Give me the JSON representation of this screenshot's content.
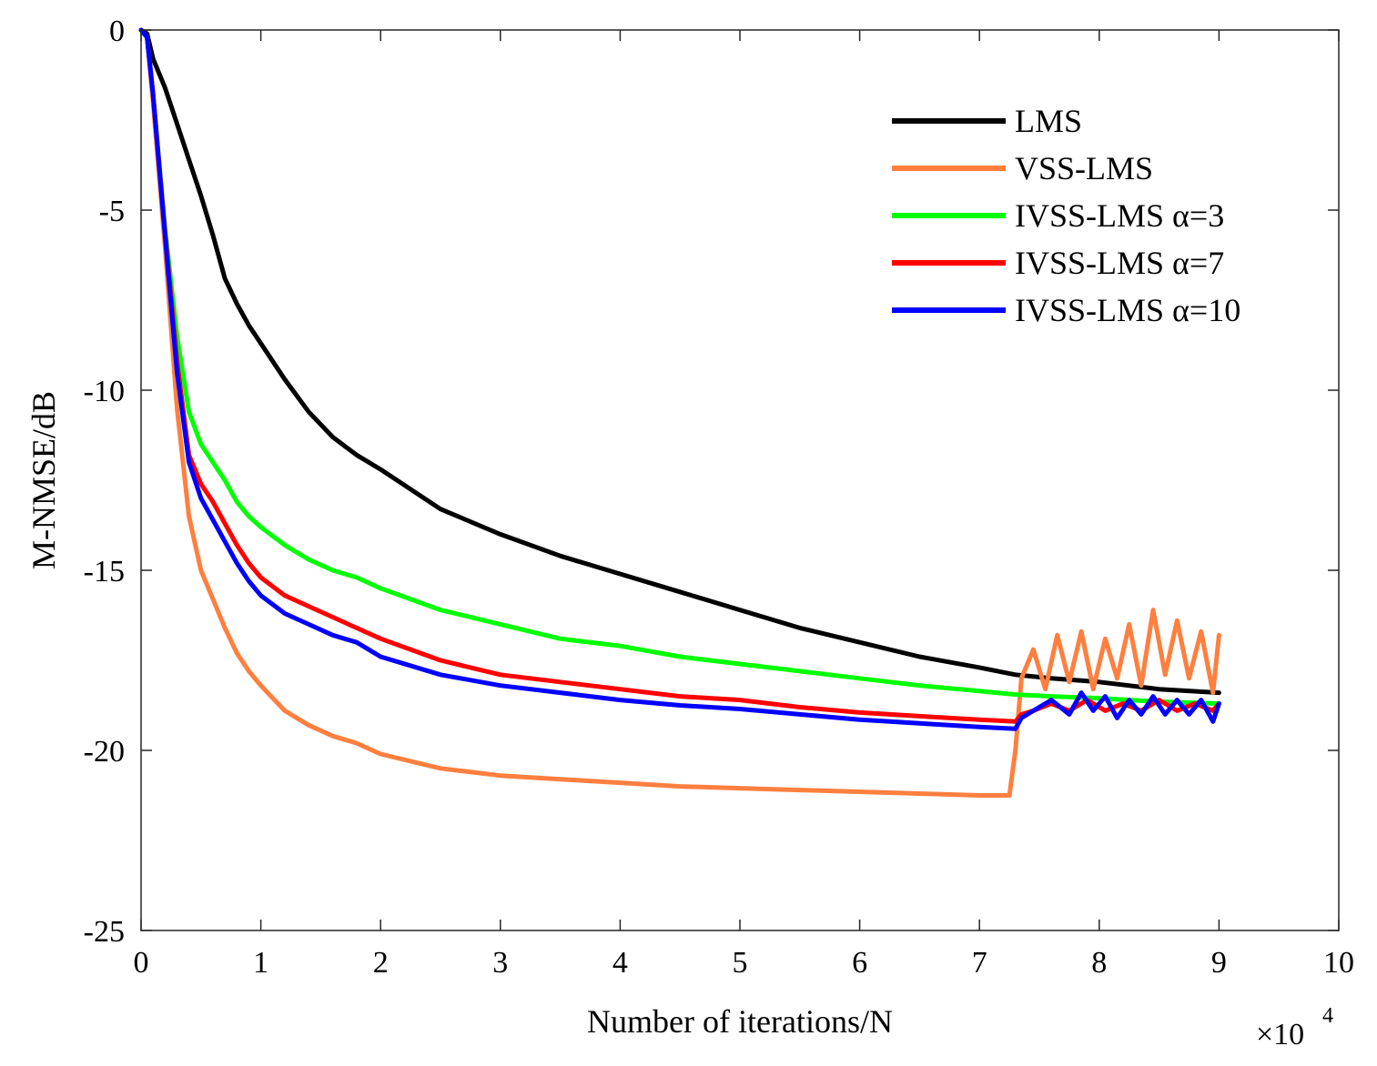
{
  "chart_data": {
    "type": "line",
    "title": "",
    "xlabel": "Number of iterations/N",
    "ylabel": "M-NMSE/dB",
    "x_multiplier": "×10",
    "x_multiplier_exp": "4",
    "xlim": [
      0,
      10
    ],
    "ylim": [
      -25,
      0
    ],
    "xticks": [
      0,
      1,
      2,
      3,
      4,
      5,
      6,
      7,
      8,
      9,
      10
    ],
    "xtick_labels": [
      "0",
      "1",
      "2",
      "3",
      "4",
      "5",
      "6",
      "7",
      "8",
      "9",
      "10"
    ],
    "yticks": [
      0,
      -5,
      -10,
      -15,
      -20,
      -25
    ],
    "ytick_labels": [
      "0",
      "-5",
      "-10",
      "-15",
      "-20",
      "-25"
    ],
    "grid": false,
    "legend_position": "top-right",
    "series": [
      {
        "name": "LMS",
        "color": "#000000",
        "x": [
          0,
          0.05,
          0.1,
          0.2,
          0.3,
          0.4,
          0.5,
          0.6,
          0.7,
          0.8,
          0.9,
          1.0,
          1.2,
          1.4,
          1.6,
          1.8,
          2.0,
          2.5,
          3.0,
          3.5,
          4.0,
          4.5,
          5.0,
          5.5,
          6.0,
          6.5,
          7.0,
          7.3,
          7.6,
          8.0,
          8.5,
          9.0
        ],
        "values": [
          0,
          -0.1,
          -0.8,
          -1.6,
          -2.6,
          -3.6,
          -4.6,
          -5.7,
          -6.9,
          -7.6,
          -8.2,
          -8.7,
          -9.7,
          -10.6,
          -11.3,
          -11.8,
          -12.2,
          -13.3,
          -14.0,
          -14.6,
          -15.1,
          -15.6,
          -16.1,
          -16.6,
          -17.0,
          -17.4,
          -17.7,
          -17.9,
          -18.0,
          -18.1,
          -18.3,
          -18.4
        ]
      },
      {
        "name": "VSS-LMS",
        "color": "#ff7f3f",
        "x": [
          0,
          0.05,
          0.1,
          0.2,
          0.3,
          0.4,
          0.5,
          0.6,
          0.7,
          0.8,
          0.9,
          1.0,
          1.2,
          1.4,
          1.6,
          1.8,
          2.0,
          2.5,
          3.0,
          3.5,
          4.0,
          4.5,
          5.0,
          5.5,
          6.0,
          6.5,
          7.0,
          7.25,
          7.3,
          7.35,
          7.45,
          7.55,
          7.65,
          7.75,
          7.85,
          7.95,
          8.05,
          8.15,
          8.25,
          8.35,
          8.45,
          8.55,
          8.65,
          8.75,
          8.85,
          8.95,
          9.0
        ],
        "values": [
          0,
          -0.2,
          -2.0,
          -6.0,
          -10.5,
          -13.5,
          -15.0,
          -15.8,
          -16.6,
          -17.3,
          -17.8,
          -18.2,
          -18.9,
          -19.3,
          -19.6,
          -19.8,
          -20.1,
          -20.5,
          -20.7,
          -20.8,
          -20.9,
          -21.0,
          -21.05,
          -21.1,
          -21.15,
          -21.2,
          -21.25,
          -21.25,
          -20.0,
          -18.0,
          -17.2,
          -18.3,
          -16.8,
          -18.1,
          -16.7,
          -18.3,
          -16.9,
          -18.0,
          -16.5,
          -18.2,
          -16.1,
          -17.9,
          -16.4,
          -18.0,
          -16.7,
          -18.4,
          -16.8
        ]
      },
      {
        "name": "IVSS-LMS α=3",
        "color": "#00ff00",
        "x": [
          0,
          0.05,
          0.1,
          0.2,
          0.3,
          0.4,
          0.5,
          0.6,
          0.7,
          0.8,
          0.9,
          1.0,
          1.2,
          1.4,
          1.6,
          1.8,
          2.0,
          2.5,
          3.0,
          3.5,
          4.0,
          4.5,
          5.0,
          5.5,
          6.0,
          6.5,
          7.0,
          7.3,
          7.6,
          8.0,
          8.5,
          9.0
        ],
        "values": [
          0,
          -0.2,
          -1.8,
          -5.5,
          -8.5,
          -10.6,
          -11.5,
          -12.0,
          -12.5,
          -13.1,
          -13.5,
          -13.8,
          -14.3,
          -14.7,
          -15.0,
          -15.2,
          -15.5,
          -16.1,
          -16.5,
          -16.9,
          -17.1,
          -17.4,
          -17.6,
          -17.8,
          -18.0,
          -18.2,
          -18.35,
          -18.45,
          -18.5,
          -18.55,
          -18.65,
          -18.7
        ]
      },
      {
        "name": "IVSS-LMS α=7",
        "color": "#ff0000",
        "x": [
          0,
          0.05,
          0.1,
          0.2,
          0.3,
          0.4,
          0.5,
          0.6,
          0.7,
          0.8,
          0.9,
          1.0,
          1.2,
          1.4,
          1.6,
          1.8,
          2.0,
          2.5,
          3.0,
          3.5,
          4.0,
          4.5,
          5.0,
          5.5,
          6.0,
          6.5,
          7.0,
          7.3,
          7.35,
          7.45,
          7.6,
          7.75,
          7.9,
          8.05,
          8.2,
          8.35,
          8.5,
          8.65,
          8.8,
          8.95,
          9.0
        ],
        "values": [
          0,
          -0.2,
          -1.8,
          -5.6,
          -9.2,
          -11.8,
          -12.6,
          -13.1,
          -13.7,
          -14.3,
          -14.8,
          -15.2,
          -15.7,
          -16.0,
          -16.3,
          -16.6,
          -16.9,
          -17.5,
          -17.9,
          -18.1,
          -18.3,
          -18.5,
          -18.6,
          -18.8,
          -18.95,
          -19.05,
          -19.15,
          -19.2,
          -19.0,
          -18.9,
          -18.7,
          -18.9,
          -18.6,
          -18.9,
          -18.7,
          -18.9,
          -18.6,
          -18.9,
          -18.7,
          -18.9,
          -18.7
        ]
      },
      {
        "name": "IVSS-LMS α=10",
        "color": "#0000ff",
        "x": [
          0,
          0.05,
          0.1,
          0.2,
          0.3,
          0.4,
          0.5,
          0.6,
          0.7,
          0.8,
          0.9,
          1.0,
          1.2,
          1.4,
          1.6,
          1.8,
          2.0,
          2.5,
          3.0,
          3.5,
          4.0,
          4.5,
          5.0,
          5.5,
          6.0,
          6.5,
          7.0,
          7.3,
          7.35,
          7.45,
          7.6,
          7.75,
          7.85,
          7.95,
          8.05,
          8.15,
          8.25,
          8.35,
          8.45,
          8.55,
          8.65,
          8.75,
          8.85,
          8.95,
          9.0
        ],
        "values": [
          0,
          -0.2,
          -1.8,
          -5.7,
          -9.5,
          -12.0,
          -13.0,
          -13.6,
          -14.2,
          -14.8,
          -15.3,
          -15.7,
          -16.2,
          -16.5,
          -16.8,
          -17.0,
          -17.4,
          -17.9,
          -18.2,
          -18.4,
          -18.6,
          -18.75,
          -18.85,
          -19.0,
          -19.15,
          -19.25,
          -19.35,
          -19.4,
          -19.1,
          -18.9,
          -18.6,
          -19.0,
          -18.4,
          -18.9,
          -18.5,
          -19.1,
          -18.6,
          -19.0,
          -18.5,
          -19.0,
          -18.6,
          -19.0,
          -18.6,
          -19.2,
          -18.7
        ]
      }
    ]
  }
}
